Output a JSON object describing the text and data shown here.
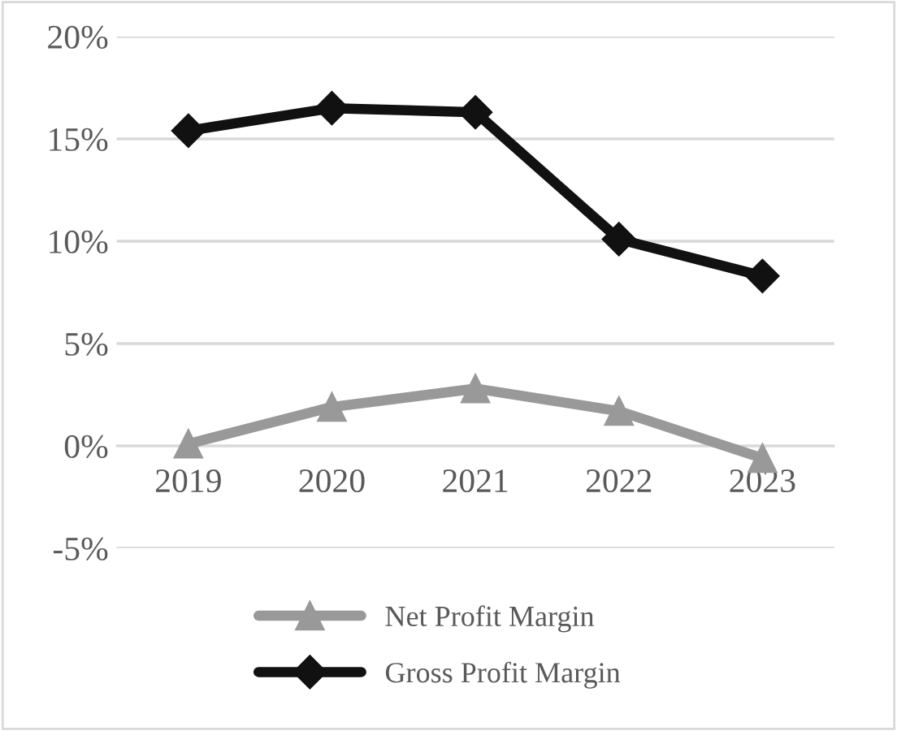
{
  "chart_data": {
    "type": "line",
    "categories": [
      "2019",
      "2020",
      "2021",
      "2022",
      "2023"
    ],
    "series": [
      {
        "name": "Net Profit Margin",
        "color": "#999999",
        "marker": "triangle",
        "values": [
          0.1,
          1.9,
          2.8,
          1.7,
          -0.6
        ]
      },
      {
        "name": "Gross Profit Margin",
        "color": "#111111",
        "marker": "diamond",
        "values": [
          15.4,
          16.5,
          16.3,
          10.1,
          8.3
        ]
      }
    ],
    "ylim": [
      -5,
      20
    ],
    "yticks": [
      {
        "value": -5,
        "label": "-5%"
      },
      {
        "value": 0,
        "label": "0%"
      },
      {
        "value": 5,
        "label": "5%"
      },
      {
        "value": 10,
        "label": "10%"
      },
      {
        "value": 15,
        "label": "15%"
      },
      {
        "value": 20,
        "label": "20%"
      }
    ],
    "grid": "y",
    "legend": "bottom",
    "line_style": "solid"
  }
}
